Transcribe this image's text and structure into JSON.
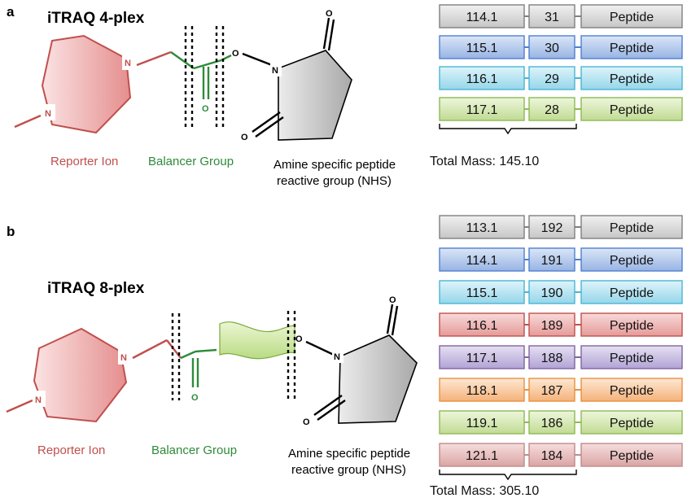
{
  "colors": {
    "reporter": "#c0504d",
    "balancer": "#2e8b3a",
    "bond": "#000000"
  },
  "panel_a": {
    "letter": "a",
    "title": "iTRAQ 4-plex",
    "atom_n_ring": "N",
    "atom_n_link": "N",
    "atom_o_carbonyl": "O",
    "atom_o_ester": "O",
    "atom_n_nhs": "N",
    "atom_o_nhs_top": "O",
    "atom_o_nhs_bottom": "O",
    "label_reporter": "Reporter Ion",
    "label_balancer": "Balancer Group",
    "label_reactive_1": "Amine specific peptide",
    "label_reactive_2": "reactive group (NHS)",
    "total_mass": "Total Mass: 145.10",
    "rows": [
      {
        "reporter": "114.1",
        "balancer": "31",
        "peptide": "Peptide",
        "color": "gray"
      },
      {
        "reporter": "115.1",
        "balancer": "30",
        "peptide": "Peptide",
        "color": "blue"
      },
      {
        "reporter": "116.1",
        "balancer": "29",
        "peptide": "Peptide",
        "color": "cyan"
      },
      {
        "reporter": "117.1",
        "balancer": "28",
        "peptide": "Peptide",
        "color": "green"
      }
    ]
  },
  "panel_b": {
    "letter": "b",
    "title": "iTRAQ 8-plex",
    "atom_n_ring": "N",
    "atom_n_link": "N",
    "atom_o_carbonyl": "O",
    "atom_o_ester": "O",
    "atom_n_nhs": "N",
    "atom_o_nhs_top": "O",
    "atom_o_nhs_bottom": "O",
    "label_reporter": "Reporter Ion",
    "label_balancer": "Balancer Group",
    "label_reactive_1": "Amine specific peptide",
    "label_reactive_2": "reactive group (NHS)",
    "total_mass": "Total Mass: 305.10",
    "rows": [
      {
        "reporter": "113.1",
        "balancer": "192",
        "peptide": "Peptide",
        "color": "gray"
      },
      {
        "reporter": "114.1",
        "balancer": "191",
        "peptide": "Peptide",
        "color": "blue"
      },
      {
        "reporter": "115.1",
        "balancer": "190",
        "peptide": "Peptide",
        "color": "cyan"
      },
      {
        "reporter": "116.1",
        "balancer": "189",
        "peptide": "Peptide",
        "color": "red"
      },
      {
        "reporter": "117.1",
        "balancer": "188",
        "peptide": "Peptide",
        "color": "purple"
      },
      {
        "reporter": "118.1",
        "balancer": "187",
        "peptide": "Peptide",
        "color": "orange"
      },
      {
        "reporter": "119.1",
        "balancer": "186",
        "peptide": "Peptide",
        "color": "green"
      },
      {
        "reporter": "121.1",
        "balancer": "184",
        "peptide": "Peptide",
        "color": "pink"
      }
    ]
  }
}
